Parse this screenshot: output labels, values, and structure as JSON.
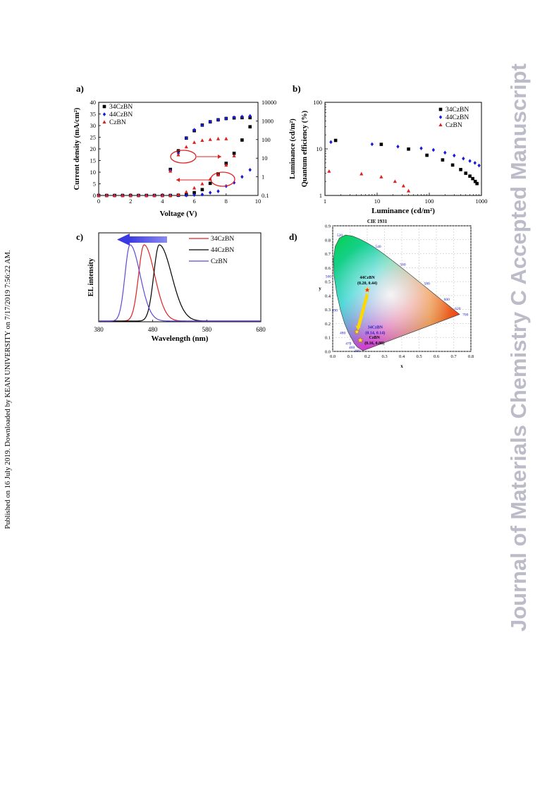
{
  "sidebar_text": "Published on 16 July 2019. Downloaded by KEAN UNIVERSITY on 7/17/2019 7:56:22 AM.",
  "watermark_text": "Journal of Materials Chemistry C Accepted Manuscript",
  "colors": {
    "34CzBN": "#000000",
    "44CzBN": "#1a1adc",
    "CzBN": "#e02020",
    "spectrum_CzBN": "#5b4bd6",
    "spectrum_34CzBN": "#e02020",
    "spectrum_44CzBN": "#000000",
    "arrow": "#e02020"
  },
  "panels": {
    "a": {
      "label": "a)"
    },
    "b": {
      "label": "b)"
    },
    "c": {
      "label": "c)"
    },
    "d": {
      "label": "d)"
    }
  },
  "chart_data": [
    {
      "id": "a",
      "type": "scatter",
      "xlabel": "Voltage (V)",
      "ylabel": "Current density (mA/cm²)",
      "y2label": "Luminance (cd/m²)",
      "xlim": [
        0,
        10
      ],
      "ylim": [
        0,
        40
      ],
      "y2lim": [
        0.1,
        10000
      ],
      "y2scale": "log",
      "xticks": [
        "0",
        "2",
        "4",
        "6",
        "8",
        "10"
      ],
      "yticks": [
        "0",
        "5",
        "10",
        "15",
        "20",
        "25",
        "30",
        "35",
        "40"
      ],
      "y2ticks": [
        "0.1",
        "1",
        "10",
        "100",
        "1000",
        "10000"
      ],
      "legend": "top-left",
      "series": [
        {
          "name": "34CzBN",
          "marker": "square",
          "current_x": [
            0,
            0.5,
            1,
            1.5,
            2,
            2.5,
            3,
            3.5,
            4,
            4.5,
            5,
            5.5,
            6,
            6.5,
            7,
            7.5,
            8,
            8.5,
            9,
            9.5
          ],
          "current_y": [
            0,
            0,
            0,
            0,
            0,
            0,
            0,
            0,
            0,
            0,
            0.1,
            0.3,
            1.2,
            2.5,
            5.2,
            9.3,
            13.8,
            18.1,
            23.8,
            29.5
          ],
          "lum_x": [
            4.5,
            5,
            5.5,
            6,
            6.5,
            7,
            7.5,
            8,
            8.5,
            9,
            9.5
          ],
          "lum_y": [
            2.5,
            25,
            120,
            300,
            600,
            900,
            1150,
            1350,
            1450,
            1500,
            1500
          ]
        },
        {
          "name": "44CzBN",
          "marker": "diamond",
          "current_x": [
            0,
            0.5,
            1,
            1.5,
            2,
            2.5,
            3,
            3.5,
            4,
            4.5,
            5,
            5.5,
            6,
            6.5,
            7,
            7.5,
            8,
            8.5,
            9,
            9.5
          ],
          "current_y": [
            0,
            0,
            0,
            0,
            0,
            0,
            0,
            0,
            0,
            0,
            0,
            0,
            0.2,
            0.4,
            1.2,
            1.8,
            4,
            5.5,
            8,
            11
          ],
          "lum_x": [
            4.5,
            5,
            5.5,
            6,
            6.5,
            7,
            7.5,
            8,
            8.5,
            9,
            9.5
          ],
          "lum_y": [
            2.2,
            18,
            120,
            330,
            600,
            900,
            1150,
            1350,
            1550,
            1700,
            1850
          ]
        },
        {
          "name": "CzBN",
          "marker": "triangle",
          "current_x": [
            0,
            0.5,
            1,
            1.5,
            2,
            2.5,
            3,
            3.5,
            4,
            4.5,
            5,
            5.5,
            6,
            6.5,
            7,
            7.5,
            8,
            8.5
          ],
          "current_y": [
            0,
            0,
            0,
            0,
            0,
            0,
            0,
            0,
            0,
            0,
            0.3,
            1.5,
            3.2,
            5,
            7,
            8.8,
            13,
            17
          ],
          "lum_x": [
            4.5,
            5,
            5.5,
            6,
            6.5,
            7,
            7.5,
            8
          ],
          "lum_y": [
            2,
            15,
            40,
            70,
            90,
            100,
            110,
            110
          ]
        }
      ]
    },
    {
      "id": "b",
      "type": "scatter",
      "xlabel": "Luminance (cd/m²)",
      "ylabel": "Quantum efficiency (%)",
      "xscale": "log",
      "yscale": "log",
      "xlim": [
        1,
        1000
      ],
      "ylim": [
        1,
        100
      ],
      "xticks": [
        "1",
        "10",
        "100",
        "1000"
      ],
      "yticks": [
        "1",
        "10",
        "100"
      ],
      "legend": "top-right",
      "series": [
        {
          "name": "34CzBN",
          "marker": "square",
          "x": [
            1.6,
            12,
            40,
            90,
            180,
            280,
            400,
            500,
            600,
            680,
            760,
            820
          ],
          "y": [
            15.2,
            12.5,
            9.9,
            7.3,
            5.8,
            4.5,
            3.6,
            3,
            2.6,
            2.3,
            2,
            1.8
          ]
        },
        {
          "name": "44CzBN",
          "marker": "diamond",
          "x": [
            1.3,
            8,
            25,
            70,
            120,
            200,
            300,
            450,
            600,
            750,
            900
          ],
          "y": [
            14,
            12.6,
            11.2,
            10.3,
            9.5,
            8.3,
            7.2,
            6.2,
            5.5,
            5,
            4.4
          ]
        },
        {
          "name": "CzBN",
          "marker": "triangle",
          "x": [
            1.2,
            5,
            12,
            22,
            32,
            40
          ],
          "y": [
            3.3,
            2.9,
            2.5,
            2.0,
            1.6,
            1.25
          ]
        }
      ]
    },
    {
      "id": "c",
      "type": "line",
      "xlabel": "Wavelength  (nm)",
      "ylabel": "EL intensity",
      "xlim": [
        380,
        680
      ],
      "xticks": [
        "380",
        "480",
        "580",
        "680"
      ],
      "legend": "top-right",
      "series": [
        {
          "name": "34CzBN",
          "peak": 464,
          "fwhm_left": 24,
          "fwhm_right": 46
        },
        {
          "name": "44CzBN",
          "peak": 492,
          "fwhm_left": 24,
          "fwhm_right": 54
        },
        {
          "name": "CzBN",
          "peak": 438,
          "fwhm_left": 22,
          "fwhm_right": 44
        }
      ]
    },
    {
      "id": "d",
      "type": "scatter",
      "title": "CIE 1931",
      "xlabel": "x",
      "ylabel": "y",
      "xlim": [
        0,
        0.8
      ],
      "ylim": [
        0,
        0.9
      ],
      "xticks": [
        "0.0",
        "0.1",
        "0.2",
        "0.3",
        "0.4",
        "0.5",
        "0.6",
        "0.7",
        "0.8"
      ],
      "yticks": [
        "0.0",
        "0.1",
        "0.2",
        "0.3",
        "0.4",
        "0.5",
        "0.6",
        "0.7",
        "0.8",
        "0.9"
      ],
      "wavelength_labels": [
        {
          "nm": "380",
          "x": 0.174,
          "y": 0.005
        },
        {
          "nm": "460",
          "x": 0.144,
          "y": 0.03
        },
        {
          "nm": "470",
          "x": 0.124,
          "y": 0.058
        },
        {
          "nm": "480",
          "x": 0.091,
          "y": 0.133
        },
        {
          "nm": "490",
          "x": 0.045,
          "y": 0.295
        },
        {
          "nm": "500",
          "x": 0.008,
          "y": 0.538
        },
        {
          "nm": "520",
          "x": 0.074,
          "y": 0.834
        },
        {
          "nm": "540",
          "x": 0.23,
          "y": 0.754
        },
        {
          "nm": "560",
          "x": 0.373,
          "y": 0.624
        },
        {
          "nm": "580",
          "x": 0.512,
          "y": 0.487
        },
        {
          "nm": "600",
          "x": 0.627,
          "y": 0.373
        },
        {
          "nm": "620",
          "x": 0.691,
          "y": 0.308
        },
        {
          "nm": "700",
          "x": 0.735,
          "y": 0.265
        }
      ],
      "points": [
        {
          "name": "44CzBN",
          "coords": "(0.20, 0.44)",
          "x": 0.2,
          "y": 0.44
        },
        {
          "name": "34CzBN",
          "coords": "(0.14, 0.14)",
          "x": 0.14,
          "y": 0.14
        },
        {
          "name": "CzBN",
          "coords": "(0.16, 0.08)",
          "x": 0.16,
          "y": 0.08
        }
      ]
    }
  ]
}
